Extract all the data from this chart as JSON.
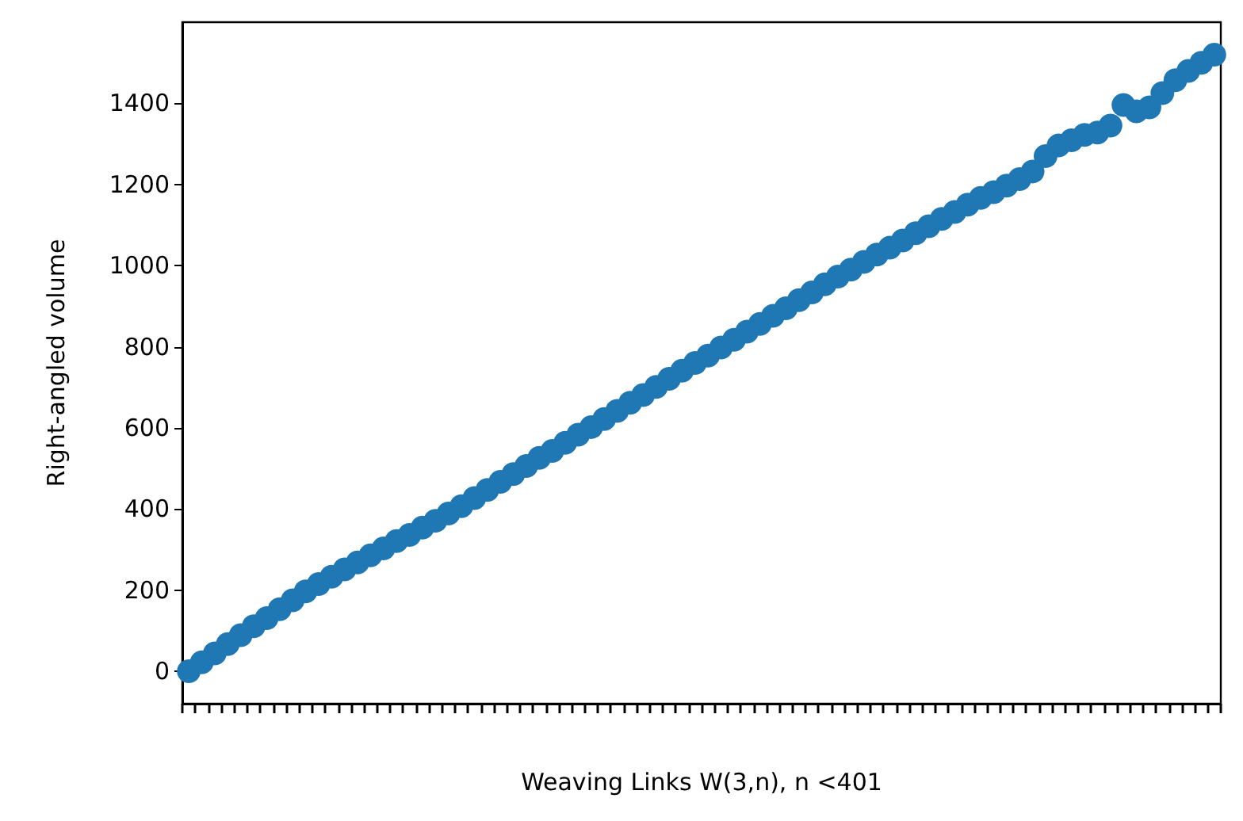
{
  "chart_data": {
    "type": "scatter",
    "xlabel": "Weaving Links W(3,n), n <401",
    "ylabel": "Right-angled volume",
    "categories": [
      null,
      null,
      null,
      null,
      null,
      null,
      null,
      null,
      null,
      null,
      null,
      null,
      null,
      null,
      null,
      null,
      null,
      null,
      null,
      null,
      null,
      null,
      null,
      null,
      null,
      null,
      null,
      null,
      null,
      null,
      null,
      null,
      null,
      null,
      null,
      null,
      null,
      null,
      null,
      null,
      null,
      null,
      null,
      null,
      null,
      null,
      null,
      null,
      null,
      null,
      null,
      null,
      null,
      null,
      null,
      null,
      null,
      null,
      null,
      null,
      null,
      null,
      null,
      null,
      null,
      null,
      null,
      null,
      null,
      null,
      null,
      null,
      null,
      null,
      null,
      null,
      null,
      null,
      null,
      null
    ],
    "series": [
      {
        "color": "#1f77b4",
        "values": [
          0,
          22,
          44,
          67,
          89,
          111,
          131,
          153,
          175,
          197,
          215,
          233,
          251,
          268,
          286,
          303,
          321,
          336,
          354,
          371,
          389,
          407,
          427,
          447,
          467,
          486,
          506,
          526,
          543,
          563,
          583,
          602,
          622,
          642,
          662,
          681,
          701,
          721,
          741,
          760,
          778,
          798,
          817,
          837,
          856,
          876,
          895,
          915,
          934,
          954,
          973,
          990,
          1009,
          1027,
          1044,
          1062,
          1080,
          1097,
          1115,
          1132,
          1150,
          1167,
          1181,
          1197,
          1213,
          1232,
          1270,
          1296,
          1309,
          1322,
          1328,
          1345,
          1396,
          1380,
          1390,
          1425,
          1457,
          1480,
          1500,
          1520
        ]
      }
    ],
    "ylim": [
      -80,
      1600
    ],
    "yticks": [
      0,
      200,
      400,
      600,
      800,
      1000,
      1200,
      1400
    ],
    "marker": "circle"
  }
}
